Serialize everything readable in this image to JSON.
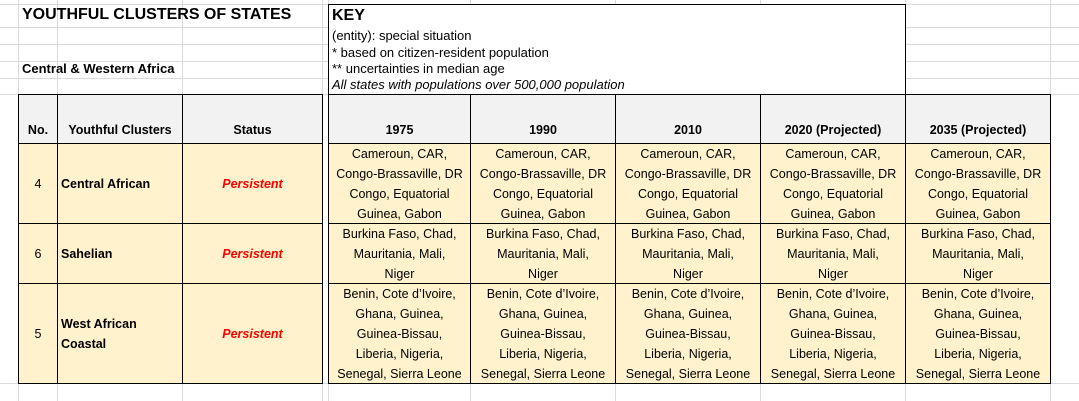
{
  "title": "YOUTHFUL CLUSTERS OF STATES",
  "region": "Central & Western Africa",
  "key": {
    "heading": "KEY",
    "lines": [
      "(entity): special situation",
      "* based on citizen-resident population",
      "** uncertainties in median age"
    ],
    "note": "All states with populations over 500,000 population"
  },
  "headers": {
    "no": "No.",
    "cluster": "Youthful Clusters",
    "status": "Status",
    "years": [
      "1975",
      "1990",
      "2010",
      "2020 (Projected)",
      "2035 (Projected)"
    ]
  },
  "rows": [
    {
      "no": "4",
      "cluster": "Central African",
      "status": "Persistent",
      "states": "Cameroun, CAR,\nCongo-Brassaville, DR\nCongo, Equatorial\nGuinea, Gabon"
    },
    {
      "no": "6",
      "cluster": "Sahelian",
      "status": "Persistent",
      "states": "Burkina Faso, Chad,\nMauritania, Mali,\nNiger"
    },
    {
      "no": "5",
      "cluster": "West African\nCoastal",
      "status": "Persistent",
      "states": "Benin, Cote d’Ivoire,\nGhana, Guinea,\nGuinea-Bissau,\nLiberia, Nigeria,\nSenegal, Sierra Leone"
    }
  ],
  "colors": {
    "row_fill": "#fff2cc",
    "header_fill": "#f2f2f2",
    "status": "#ff0000"
  }
}
